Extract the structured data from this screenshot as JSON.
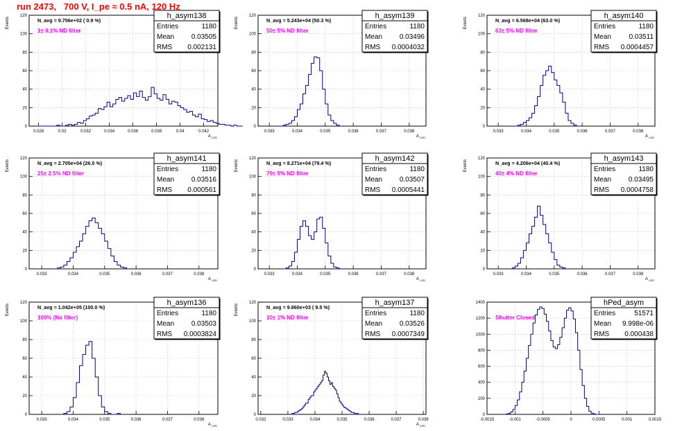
{
  "header": {
    "title": "run 2473,   700 V, I_pe ≈ 0.5 nA, 120 Hz"
  },
  "colors": {
    "title": "#ff0000",
    "filter_label": "#ff00ff",
    "histogram": "#000080",
    "grid": "#c8c8c8"
  },
  "chart_data": [
    {
      "type": "bar",
      "name": "h_asym138",
      "title": "N_avg = 9.756e+02 ( 0.9 %)",
      "filter_label": "1± 0.1% ND filter",
      "stats": [
        [
          "Entries",
          "1180"
        ],
        [
          "Mean",
          "0.03505"
        ],
        [
          "RMS",
          "0.002131"
        ]
      ],
      "xlabel": "A_LED",
      "ylabel": "Events",
      "xlim": [
        0.0272,
        0.0432
      ],
      "ylim": [
        0,
        120
      ],
      "xticks": [
        0.028,
        0.03,
        0.032,
        0.034,
        0.036,
        0.038,
        0.04,
        0.042
      ],
      "xtick_labels": [
        "0.028",
        "0.03",
        "0.032",
        "0.034",
        "0.036",
        "0.038",
        "0.04",
        "0.042"
      ],
      "yticks": [
        0,
        20,
        40,
        60,
        80,
        100,
        120
      ],
      "grid": true,
      "bins": {
        "start": 0.0278,
        "width": 0.00025,
        "values": [
          0,
          0,
          0,
          0,
          0,
          0,
          0,
          1,
          0,
          0,
          1,
          2,
          1,
          2,
          4,
          3,
          6,
          8,
          11,
          12,
          14,
          19,
          18,
          21,
          26,
          21,
          24,
          29,
          31,
          27,
          30,
          33,
          29,
          36,
          32,
          38,
          31,
          28,
          32,
          42,
          35,
          30,
          28,
          34,
          29,
          24,
          27,
          26,
          22,
          20,
          18,
          15,
          16,
          12,
          10,
          13,
          8,
          7,
          5,
          6,
          4,
          3,
          2,
          2,
          1,
          1,
          0,
          1,
          0,
          0
        ]
      }
    },
    {
      "type": "bar",
      "name": "h_asym139",
      "title": "N_avg = 5.243e+04 (50.3 %)",
      "filter_label": "50± 5% ND filter",
      "stats": [
        [
          "Entries",
          "1180"
        ],
        [
          "Mean",
          "0.03496"
        ],
        [
          "RMS",
          "0.0004032"
        ]
      ],
      "xlabel": "A_LED",
      "ylabel": "Events",
      "xlim": [
        0.0326,
        0.0386
      ],
      "ylim": [
        0,
        120
      ],
      "xticks": [
        0.033,
        0.034,
        0.035,
        0.036,
        0.037,
        0.038
      ],
      "xtick_labels": [
        "0.033",
        "0.034",
        "0.035",
        "0.036",
        "0.037",
        "0.038"
      ],
      "yticks": [
        0,
        20,
        40,
        60,
        80,
        100,
        120
      ],
      "grid": true,
      "bins": {
        "start": 0.0334,
        "width": 0.0001,
        "values": [
          0,
          1,
          2,
          3,
          6,
          10,
          18,
          24,
          35,
          44,
          56,
          68,
          75,
          74,
          60,
          40,
          24,
          12,
          6,
          3,
          1,
          0
        ]
      }
    },
    {
      "type": "bar",
      "name": "h_asym140",
      "title": "N_avg = 6.568e+04 (63.0 %)",
      "filter_label": "63± 5% ND filter",
      "stats": [
        [
          "Entries",
          "1180"
        ],
        [
          "Mean",
          "0.03511"
        ],
        [
          "RMS",
          "0.0004457"
        ]
      ],
      "xlabel": "A_LED",
      "ylabel": "Events",
      "xlim": [
        0.0326,
        0.0386
      ],
      "ylim": [
        0,
        120
      ],
      "xticks": [
        0.033,
        0.034,
        0.035,
        0.036,
        0.037,
        0.038
      ],
      "xtick_labels": [
        "0.033",
        "0.034",
        "0.035",
        "0.036",
        "0.037",
        "0.038"
      ],
      "yticks": [
        0,
        20,
        40,
        60,
        80,
        100,
        120
      ],
      "grid": true,
      "bins": {
        "start": 0.0336,
        "width": 0.0001,
        "values": [
          0,
          1,
          2,
          4,
          6,
          9,
          14,
          22,
          32,
          44,
          55,
          60,
          65,
          58,
          50,
          44,
          36,
          26,
          14,
          6,
          3,
          1,
          0
        ]
      }
    },
    {
      "type": "bar",
      "name": "h_asym141",
      "title": "N_avg = 2.705e+04 (26.0 %)",
      "filter_label": "25± 2.5% ND filter",
      "stats": [
        [
          "Entries",
          "1180"
        ],
        [
          "Mean",
          "0.03516"
        ],
        [
          "RMS",
          "0.000561"
        ]
      ],
      "xlabel": "A_LED",
      "ylabel": "Events",
      "xlim": [
        0.0326,
        0.0386
      ],
      "ylim": [
        0,
        120
      ],
      "xticks": [
        0.033,
        0.034,
        0.035,
        0.036,
        0.037,
        0.038
      ],
      "xtick_labels": [
        "0.033",
        "0.034",
        "0.035",
        "0.036",
        "0.037",
        "0.038"
      ],
      "yticks": [
        0,
        20,
        40,
        60,
        80,
        100,
        120
      ],
      "grid": true,
      "bins": {
        "start": 0.0334,
        "width": 0.0001,
        "values": [
          0,
          1,
          2,
          4,
          8,
          12,
          18,
          24,
          30,
          38,
          46,
          52,
          55,
          50,
          44,
          38,
          30,
          22,
          14,
          8,
          4,
          2,
          1,
          0
        ]
      }
    },
    {
      "type": "bar",
      "name": "h_asym142",
      "title": "N_avg = 8.271e+04 (79.4 %)",
      "filter_label": "79± 5% ND filter",
      "stats": [
        [
          "Entries",
          "1180"
        ],
        [
          "Mean",
          "0.03507"
        ],
        [
          "RMS",
          "0.0005441"
        ]
      ],
      "xlabel": "A_LED",
      "ylabel": "Events",
      "xlim": [
        0.0326,
        0.0386
      ],
      "ylim": [
        0,
        120
      ],
      "xticks": [
        0.033,
        0.034,
        0.035,
        0.036,
        0.037,
        0.038
      ],
      "xtick_labels": [
        "0.033",
        "0.034",
        "0.035",
        "0.036",
        "0.037",
        "0.038"
      ],
      "yticks": [
        0,
        20,
        40,
        60,
        80,
        100,
        120
      ],
      "grid": true,
      "bins": {
        "start": 0.0335,
        "width": 0.0001,
        "values": [
          0,
          1,
          3,
          8,
          18,
          32,
          46,
          52,
          46,
          36,
          32,
          40,
          54,
          56,
          44,
          28,
          14,
          6,
          2,
          1,
          0
        ]
      }
    },
    {
      "type": "bar",
      "name": "h_asym143",
      "title": "N_avg = 4.206e+04 (40.4 %)",
      "filter_label": "40± 4% ND filter",
      "stats": [
        [
          "Entries",
          "1180"
        ],
        [
          "Mean",
          "0.03495"
        ],
        [
          "RMS",
          "0.0004758"
        ]
      ],
      "xlabel": "A_LED",
      "ylabel": "Events",
      "xlim": [
        0.0326,
        0.0386
      ],
      "ylim": [
        0,
        120
      ],
      "xticks": [
        0.033,
        0.034,
        0.035,
        0.036,
        0.037,
        0.038
      ],
      "xtick_labels": [
        "0.033",
        "0.034",
        "0.035",
        "0.036",
        "0.037",
        "0.038"
      ],
      "yticks": [
        0,
        20,
        40,
        60,
        80,
        100,
        120
      ],
      "grid": true,
      "bins": {
        "start": 0.0334,
        "width": 0.0001,
        "values": [
          0,
          1,
          3,
          6,
          12,
          20,
          28,
          38,
          46,
          56,
          68,
          58,
          48,
          38,
          28,
          18,
          10,
          4,
          2,
          1,
          0
        ]
      }
    },
    {
      "type": "bar",
      "name": "h_asym136",
      "title": "N_avg = 1.042e+05 (100.0 %)",
      "filter_label": "100% (No filter)",
      "stats": [
        [
          "Entries",
          "1180"
        ],
        [
          "Mean",
          "0.03503"
        ],
        [
          "RMS",
          "0.0003824"
        ]
      ],
      "xlabel": "A_LED",
      "ylabel": "Events",
      "xlim": [
        0.0326,
        0.0386
      ],
      "ylim": [
        0,
        120
      ],
      "xticks": [
        0.033,
        0.034,
        0.035,
        0.036,
        0.037,
        0.038
      ],
      "xtick_labels": [
        "0.033",
        "0.034",
        "0.035",
        "0.036",
        "0.037",
        "0.038"
      ],
      "yticks": [
        0,
        20,
        40,
        60,
        80,
        100,
        120
      ],
      "grid": true,
      "bins": {
        "start": 0.0336,
        "width": 0.0001,
        "values": [
          0,
          1,
          3,
          8,
          18,
          34,
          52,
          64,
          74,
          78,
          60,
          40,
          20,
          8,
          3,
          1,
          0,
          0,
          1,
          0
        ]
      }
    },
    {
      "type": "bar",
      "name": "h_asym137",
      "title": "N_avg = 9.860e+03 ( 9.5 %)",
      "filter_label": "10± 1% ND filter",
      "stats": [
        [
          "Entries",
          "1180"
        ],
        [
          "Mean",
          "0.03526"
        ],
        [
          "RMS",
          "0.0007349"
        ]
      ],
      "xlabel": "A_LED",
      "ylabel": "Events",
      "xlim": [
        0.0319,
        0.0381
      ],
      "ylim": [
        0,
        120
      ],
      "xticks": [
        0.032,
        0.033,
        0.034,
        0.035,
        0.036,
        0.037,
        0.038
      ],
      "xtick_labels": [
        "0.032",
        "0.033",
        "0.034",
        "0.035",
        "0.036",
        "0.037",
        "0.038"
      ],
      "yticks": [
        0,
        20,
        40,
        60,
        80,
        100,
        120
      ],
      "grid": true,
      "bins": {
        "start": 0.0331,
        "width": 5e-05,
        "values": [
          0,
          1,
          1,
          2,
          2,
          3,
          4,
          5,
          6,
          8,
          10,
          12,
          12,
          16,
          18,
          20,
          20,
          24,
          26,
          28,
          30,
          32,
          34,
          36,
          42,
          46,
          44,
          40,
          36,
          32,
          34,
          30,
          28,
          26,
          22,
          18,
          14,
          12,
          10,
          8,
          7,
          6,
          5,
          4,
          3,
          2,
          2,
          1,
          1,
          1,
          0
        ]
      }
    },
    {
      "type": "bar",
      "name": "hPed_asym",
      "title": "",
      "filter_label": "Shutter Closed",
      "stats": [
        [
          "Entries",
          "51571"
        ],
        [
          "Mean",
          "9.998e-06"
        ],
        [
          "RMS",
          "0.000438"
        ]
      ],
      "xlabel": "",
      "ylabel": "",
      "xlim": [
        -0.0015,
        0.0015
      ],
      "ylim": [
        0,
        1400
      ],
      "xticks": [
        -0.0015,
        -0.001,
        -0.0005,
        0,
        0.0005,
        0.001,
        0.0015
      ],
      "xtick_labels": [
        "-0.0015",
        "-0.001",
        "-0.0005",
        "0",
        "0.0005",
        "0.001",
        "0.0015"
      ],
      "yticks": [
        0,
        200,
        400,
        600,
        800,
        1000,
        1200,
        1400
      ],
      "grid": true,
      "bins": {
        "start": -0.0012,
        "width": 4e-05,
        "values": [
          0,
          5,
          12,
          30,
          60,
          110,
          180,
          280,
          400,
          540,
          700,
          860,
          1000,
          1140,
          1240,
          1310,
          1340,
          1320,
          1250,
          1160,
          1040,
          920,
          840,
          820,
          870,
          960,
          1080,
          1200,
          1300,
          1330,
          1290,
          1190,
          1020,
          800,
          560,
          360,
          200,
          100,
          40,
          15,
          5,
          0
        ]
      }
    }
  ]
}
